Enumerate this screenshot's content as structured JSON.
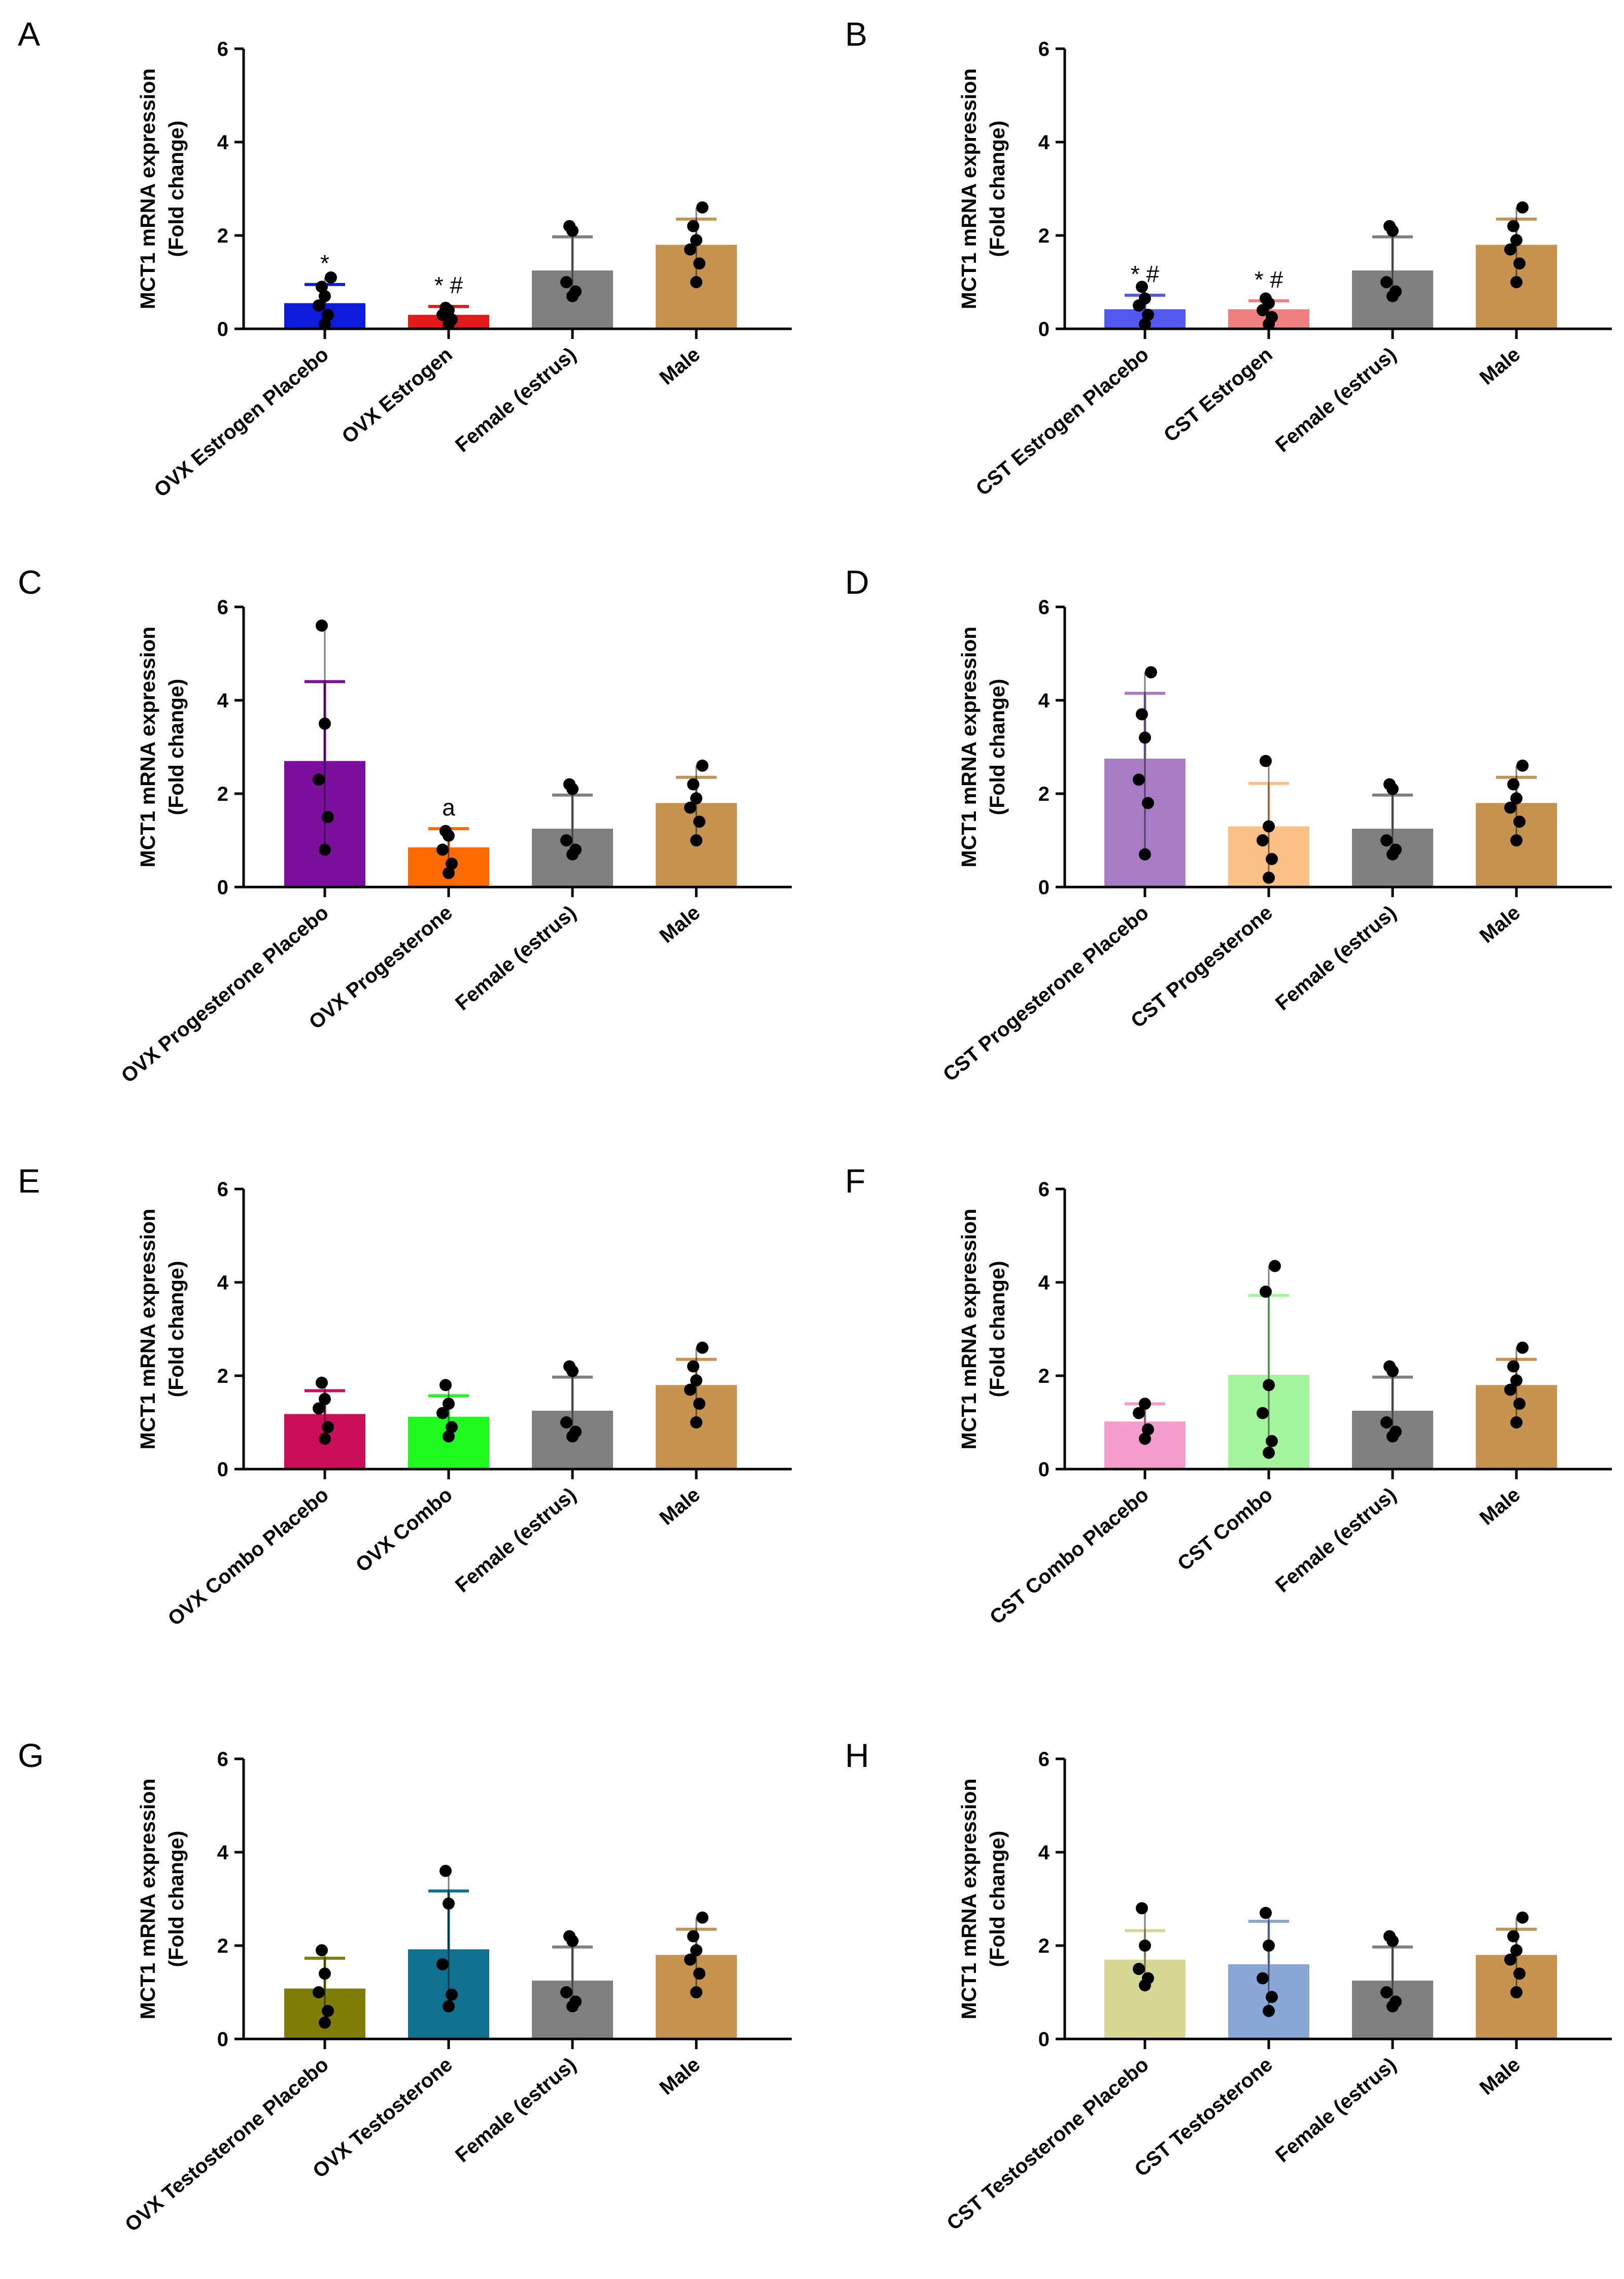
{
  "figure": {
    "panels": [
      "A",
      "B",
      "C",
      "D",
      "E",
      "F",
      "G",
      "H"
    ]
  },
  "chart_data": [
    {
      "panel": "A",
      "type": "bar",
      "ylabel": [
        "MCT1 mRNA expression",
        "(Fold change)"
      ],
      "ylim": [
        0,
        6
      ],
      "yticks": [
        "0",
        "2",
        "4",
        "6"
      ],
      "categories": [
        "OVX Estrogen Placebo",
        "OVX Estrogen",
        "Female (estrus)",
        "Male"
      ],
      "values": [
        0.55,
        0.3,
        1.25,
        1.8
      ],
      "errors": [
        0.4,
        0.18,
        0.72,
        0.55
      ],
      "points": [
        [
          0.1,
          0.3,
          0.5,
          0.7,
          0.9,
          1.1
        ],
        [
          0.1,
          0.2,
          0.3,
          0.4,
          0.45
        ],
        [
          0.7,
          0.8,
          1.0,
          2.1,
          2.2
        ],
        [
          1.0,
          1.4,
          1.7,
          1.9,
          2.2,
          2.6
        ]
      ],
      "colors": [
        "#0d1bdc",
        "#e21a1a",
        "#808080",
        "#c6944e"
      ],
      "annotations": [
        "*",
        "* #",
        "",
        ""
      ]
    },
    {
      "panel": "B",
      "type": "bar",
      "ylabel": [
        "MCT1 mRNA expression",
        "(Fold change)"
      ],
      "ylim": [
        0,
        6
      ],
      "yticks": [
        "0",
        "2",
        "4",
        "6"
      ],
      "categories": [
        "CST Estrogen Placebo",
        "CST Estrogen",
        "Female (estrus)",
        "Male"
      ],
      "values": [
        0.42,
        0.42,
        1.25,
        1.8
      ],
      "errors": [
        0.3,
        0.18,
        0.72,
        0.55
      ],
      "points": [
        [
          0.1,
          0.3,
          0.5,
          0.65,
          0.9
        ],
        [
          0.1,
          0.25,
          0.4,
          0.55,
          0.65
        ],
        [
          0.7,
          0.8,
          1.0,
          2.1,
          2.2
        ],
        [
          1.0,
          1.4,
          1.7,
          1.9,
          2.2,
          2.6
        ]
      ],
      "colors": [
        "#5257f0",
        "#f08080",
        "#808080",
        "#c6944e"
      ],
      "annotations": [
        "* #",
        "* #",
        "",
        ""
      ]
    },
    {
      "panel": "C",
      "type": "bar",
      "ylabel": [
        "MCT1 mRNA expression",
        "(Fold change)"
      ],
      "ylim": [
        0,
        6
      ],
      "yticks": [
        "0",
        "2",
        "4",
        "6"
      ],
      "categories": [
        "OVX Progesterone Placebo",
        "OVX Progesterone",
        "Female (estrus)",
        "Male"
      ],
      "values": [
        2.7,
        0.85,
        1.25,
        1.8
      ],
      "errors": [
        1.7,
        0.4,
        0.72,
        0.55
      ],
      "points": [
        [
          0.8,
          1.5,
          2.3,
          3.5,
          5.6
        ],
        [
          0.3,
          0.5,
          0.8,
          1.1,
          1.2
        ],
        [
          0.7,
          0.8,
          1.0,
          2.1,
          2.2
        ],
        [
          1.0,
          1.4,
          1.7,
          1.9,
          2.2,
          2.6
        ]
      ],
      "colors": [
        "#7d0f9d",
        "#ff6a00",
        "#808080",
        "#c6944e"
      ],
      "annotations": [
        "",
        "a",
        "",
        ""
      ]
    },
    {
      "panel": "D",
      "type": "bar",
      "ylabel": [
        "MCT1 mRNA expression",
        "(Fold change)"
      ],
      "ylim": [
        0,
        6
      ],
      "yticks": [
        "0",
        "2",
        "4",
        "6"
      ],
      "categories": [
        "CST Progesterone Placebo",
        "CST Progesterone",
        "Female (estrus)",
        "Male"
      ],
      "values": [
        2.75,
        1.3,
        1.25,
        1.8
      ],
      "errors": [
        1.4,
        0.92,
        0.72,
        0.55
      ],
      "points": [
        [
          0.7,
          1.8,
          2.3,
          3.2,
          3.7,
          4.6
        ],
        [
          0.2,
          0.6,
          1.0,
          1.3,
          2.7
        ],
        [
          0.7,
          0.8,
          1.0,
          2.1,
          2.2
        ],
        [
          1.0,
          1.4,
          1.7,
          1.9,
          2.2,
          2.6
        ]
      ],
      "colors": [
        "#a87cc4",
        "#fbc083",
        "#808080",
        "#c6944e"
      ],
      "annotations": [
        "",
        "",
        "",
        ""
      ]
    },
    {
      "panel": "E",
      "type": "bar",
      "ylabel": [
        "MCT1 mRNA expression",
        "(Fold change)"
      ],
      "ylim": [
        0,
        6
      ],
      "yticks": [
        "0",
        "2",
        "4",
        "6"
      ],
      "categories": [
        "OVX Combo Placebo",
        "OVX Combo",
        "Female (estrus)",
        "Male"
      ],
      "values": [
        1.18,
        1.12,
        1.25,
        1.8
      ],
      "errors": [
        0.5,
        0.45,
        0.72,
        0.55
      ],
      "points": [
        [
          0.65,
          0.9,
          1.3,
          1.5,
          1.85
        ],
        [
          0.7,
          0.9,
          1.2,
          1.4,
          1.8
        ],
        [
          0.7,
          0.8,
          1.0,
          2.1,
          2.2
        ],
        [
          1.0,
          1.4,
          1.7,
          1.9,
          2.2,
          2.6
        ]
      ],
      "colors": [
        "#cc0d5a",
        "#1efa1e",
        "#808080",
        "#c6944e"
      ],
      "annotations": [
        "",
        "",
        "",
        ""
      ]
    },
    {
      "panel": "F",
      "type": "bar",
      "ylabel": [
        "MCT1 mRNA expression",
        "(Fold change)"
      ],
      "ylim": [
        0,
        6
      ],
      "yticks": [
        "0",
        "2",
        "4",
        "6"
      ],
      "categories": [
        "CST Combo Placebo",
        "CST Combo",
        "Female (estrus)",
        "Male"
      ],
      "values": [
        1.02,
        2.02,
        1.25,
        1.8
      ],
      "errors": [
        0.38,
        1.7,
        0.72,
        0.55
      ],
      "points": [
        [
          0.65,
          0.85,
          1.2,
          1.4
        ],
        [
          0.35,
          0.6,
          1.2,
          1.8,
          3.8,
          4.35
        ],
        [
          0.7,
          0.8,
          1.0,
          2.1,
          2.2
        ],
        [
          1.0,
          1.4,
          1.7,
          1.9,
          2.2,
          2.6
        ]
      ],
      "colors": [
        "#f59ccc",
        "#a4f59e",
        "#808080",
        "#c6944e"
      ],
      "annotations": [
        "",
        "",
        "",
        ""
      ]
    },
    {
      "panel": "G",
      "type": "bar",
      "ylabel": [
        "MCT1 mRNA expression",
        "(Fold change)"
      ],
      "ylim": [
        0,
        6
      ],
      "yticks": [
        "0",
        "2",
        "4",
        "6"
      ],
      "categories": [
        "OVX Testosterone Placebo",
        "OVX Testosterone",
        "Female (estrus)",
        "Male"
      ],
      "values": [
        1.08,
        1.92,
        1.25,
        1.8
      ],
      "errors": [
        0.65,
        1.25,
        0.72,
        0.55
      ],
      "points": [
        [
          0.35,
          0.6,
          1.0,
          1.4,
          1.9
        ],
        [
          0.7,
          0.95,
          1.6,
          2.9,
          3.6
        ],
        [
          0.7,
          0.8,
          1.0,
          2.1,
          2.2
        ],
        [
          1.0,
          1.4,
          1.7,
          1.9,
          2.2,
          2.6
        ]
      ],
      "colors": [
        "#807e06",
        "#0f718f",
        "#808080",
        "#c6944e"
      ],
      "annotations": [
        "",
        "",
        "",
        ""
      ]
    },
    {
      "panel": "H",
      "type": "bar",
      "ylabel": [
        "MCT1 mRNA expression",
        "(Fold change)"
      ],
      "ylim": [
        0,
        6
      ],
      "yticks": [
        "0",
        "2",
        "4",
        "6"
      ],
      "categories": [
        "CST Testosterone Placebo",
        "CST Testosterone",
        "Female (estrus)",
        "Male"
      ],
      "values": [
        1.7,
        1.6,
        1.25,
        1.8
      ],
      "errors": [
        0.62,
        0.92,
        0.72,
        0.55
      ],
      "points": [
        [
          1.15,
          1.3,
          1.5,
          2.0,
          2.8
        ],
        [
          0.6,
          0.9,
          1.3,
          2.0,
          2.7
        ],
        [
          0.7,
          0.8,
          1.0,
          2.1,
          2.2
        ],
        [
          1.0,
          1.4,
          1.7,
          1.9,
          2.2,
          2.6
        ]
      ],
      "colors": [
        "#d7d795",
        "#88a7d6",
        "#808080",
        "#c6944e"
      ],
      "annotations": [
        "",
        "",
        "",
        ""
      ]
    }
  ]
}
